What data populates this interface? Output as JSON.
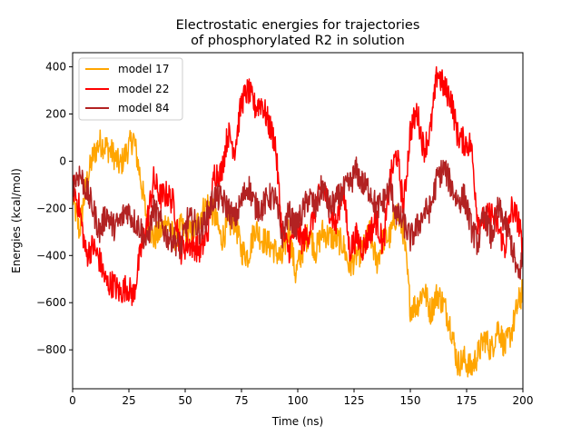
{
  "chart_data": {
    "type": "line",
    "title": [
      "Electrostatic energies for trajectories",
      "of phosphorylated R2 in solution"
    ],
    "xlabel": "Time (ns)",
    "ylabel": "Energies (kcal/mol)",
    "xlim": [
      0,
      200
    ],
    "ylim": [
      -965,
      460
    ],
    "x_ticks": [
      0,
      25,
      50,
      75,
      100,
      125,
      150,
      175,
      200
    ],
    "y_ticks": [
      -800,
      -600,
      -400,
      -200,
      0,
      200,
      400
    ],
    "grid": false,
    "legend_position": "top-left",
    "series": [
      {
        "name": "model 17",
        "color": "#ffa500",
        "x": [
          0,
          3,
          6,
          9,
          12,
          15,
          18,
          21,
          24,
          27,
          30,
          33,
          36,
          39,
          42,
          45,
          48,
          51,
          54,
          57,
          60,
          63,
          66,
          69,
          72,
          75,
          78,
          81,
          84,
          87,
          90,
          93,
          96,
          99,
          102,
          105,
          108,
          111,
          114,
          117,
          120,
          123,
          126,
          129,
          132,
          135,
          138,
          141,
          144,
          147,
          150,
          153,
          156,
          159,
          162,
          165,
          168,
          171,
          174,
          177,
          180,
          183,
          186,
          189,
          192,
          195,
          198,
          200
        ],
        "values": [
          -150,
          -300,
          -100,
          20,
          80,
          60,
          30,
          -20,
          40,
          100,
          -60,
          -250,
          -330,
          -300,
          -250,
          -330,
          -280,
          -310,
          -300,
          -220,
          -180,
          -230,
          -330,
          -280,
          -250,
          -380,
          -400,
          -280,
          -330,
          -350,
          -380,
          -420,
          -280,
          -480,
          -380,
          -300,
          -380,
          -300,
          -320,
          -330,
          -350,
          -450,
          -400,
          -380,
          -300,
          -430,
          -330,
          -320,
          -220,
          -300,
          -620,
          -610,
          -540,
          -640,
          -560,
          -610,
          -700,
          -860,
          -840,
          -880,
          -820,
          -750,
          -800,
          -700,
          -790,
          -720,
          -600,
          -550
        ]
      },
      {
        "name": "model 22",
        "color": "#ff0000",
        "x": [
          0,
          3,
          6,
          9,
          12,
          15,
          18,
          21,
          24,
          27,
          30,
          33,
          36,
          39,
          42,
          45,
          48,
          51,
          54,
          57,
          60,
          63,
          66,
          69,
          72,
          75,
          78,
          81,
          84,
          87,
          90,
          93,
          96,
          99,
          102,
          105,
          108,
          111,
          114,
          117,
          120,
          123,
          126,
          129,
          132,
          135,
          138,
          141,
          144,
          147,
          150,
          153,
          156,
          159,
          162,
          165,
          168,
          171,
          174,
          177,
          180,
          183,
          186,
          189,
          192,
          195,
          198,
          200
        ],
        "values": [
          -100,
          -200,
          -400,
          -360,
          -420,
          -520,
          -520,
          -560,
          -530,
          -570,
          -400,
          -260,
          -80,
          -150,
          -140,
          -180,
          -380,
          -350,
          -360,
          -380,
          -300,
          -50,
          -50,
          120,
          50,
          250,
          300,
          230,
          250,
          160,
          80,
          -300,
          -380,
          -280,
          -340,
          -300,
          -200,
          -100,
          -200,
          -280,
          -100,
          -380,
          -320,
          -370,
          -300,
          -250,
          -360,
          -80,
          40,
          -200,
          130,
          210,
          50,
          130,
          380,
          310,
          270,
          110,
          80,
          70,
          -250,
          -250,
          -220,
          -280,
          -370,
          -200,
          -250,
          -380
        ]
      },
      {
        "name": "model 84",
        "color": "#b22222",
        "x": [
          0,
          3,
          6,
          9,
          12,
          15,
          18,
          21,
          24,
          27,
          30,
          33,
          36,
          39,
          42,
          45,
          48,
          51,
          54,
          57,
          60,
          63,
          66,
          69,
          72,
          75,
          78,
          81,
          84,
          87,
          90,
          93,
          96,
          99,
          102,
          105,
          108,
          111,
          114,
          117,
          120,
          123,
          126,
          129,
          132,
          135,
          138,
          141,
          144,
          147,
          150,
          153,
          156,
          159,
          162,
          165,
          168,
          171,
          174,
          177,
          180,
          183,
          186,
          189,
          192,
          195,
          198,
          200
        ],
        "values": [
          -100,
          -50,
          -120,
          -200,
          -300,
          -220,
          -280,
          -260,
          -200,
          -250,
          -280,
          -350,
          -200,
          -260,
          -320,
          -330,
          -370,
          -250,
          -260,
          -300,
          -220,
          -150,
          -160,
          -200,
          -250,
          -170,
          -100,
          -190,
          -200,
          -150,
          -160,
          -320,
          -220,
          -280,
          -220,
          -150,
          -200,
          -100,
          -200,
          -170,
          -130,
          -100,
          -40,
          -100,
          -120,
          -200,
          -170,
          -110,
          -230,
          -260,
          -330,
          -280,
          -220,
          -200,
          -70,
          -30,
          -100,
          -170,
          -150,
          -280,
          -350,
          -220,
          -330,
          -200,
          -260,
          -350,
          -500,
          -400
        ]
      }
    ]
  }
}
